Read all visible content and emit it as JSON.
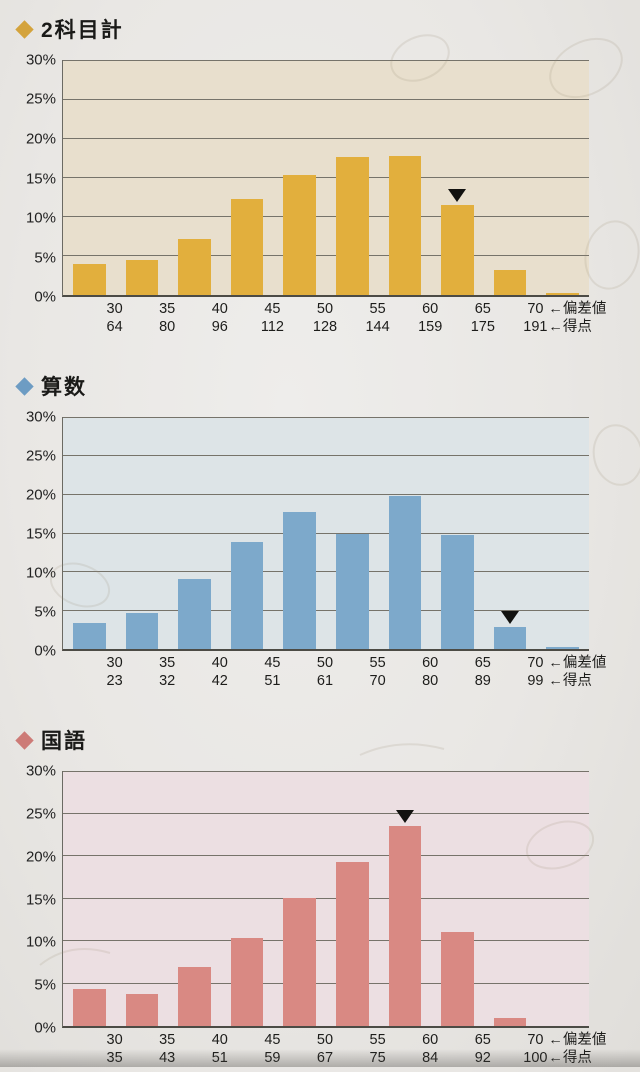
{
  "page": {
    "background_color": "#e9e7e4",
    "marker_glyph": "black-down-triangle"
  },
  "chart_data": [
    {
      "type": "bar",
      "title": "2科目計",
      "ylim": [
        0,
        30
      ],
      "ytick": 5,
      "grid": "horizontal",
      "y_labels": [
        "30%",
        "25%",
        "20%",
        "15%",
        "10%",
        "5%",
        "0%"
      ],
      "bin_ranges": [
        "<30",
        "30-35",
        "35-40",
        "40-45",
        "45-50",
        "50-55",
        "55-60",
        "60-65",
        "65-70",
        "70+"
      ],
      "values_percent": [
        4.0,
        4.5,
        7.2,
        12.2,
        15.3,
        17.6,
        17.7,
        11.5,
        3.2,
        0.3
      ],
      "marker_bin_index": 7,
      "x_boundary_labels": {
        "deviation": [
          "30",
          "35",
          "40",
          "45",
          "50",
          "55",
          "60",
          "65",
          "70"
        ],
        "score": [
          "64",
          "80",
          "96",
          "112",
          "128",
          "144",
          "159",
          "175",
          "191"
        ]
      },
      "x_axis_caption_deviation": "←偏差値",
      "x_axis_caption_score": "←得点",
      "colors": {
        "accent": "#d4a33c",
        "bar": "#e2af3d",
        "plot_bg": "#e8dfcd"
      }
    },
    {
      "type": "bar",
      "title": "算数",
      "ylim": [
        0,
        30
      ],
      "ytick": 5,
      "grid": "horizontal",
      "y_labels": [
        "30%",
        "25%",
        "20%",
        "15%",
        "10%",
        "5%",
        "0%"
      ],
      "bin_ranges": [
        "<30",
        "30-35",
        "35-40",
        "40-45",
        "45-50",
        "50-55",
        "55-60",
        "60-65",
        "65-70",
        "70+"
      ],
      "values_percent": [
        3.4,
        4.7,
        9.0,
        13.9,
        17.7,
        14.9,
        19.8,
        14.7,
        2.9,
        0.3
      ],
      "marker_bin_index": 8,
      "x_boundary_labels": {
        "deviation": [
          "30",
          "35",
          "40",
          "45",
          "50",
          "55",
          "60",
          "65",
          "70"
        ],
        "score": [
          "23",
          "32",
          "42",
          "51",
          "61",
          "70",
          "80",
          "89",
          "99"
        ]
      },
      "x_axis_caption_deviation": "←偏差値",
      "x_axis_caption_score": "←得点",
      "colors": {
        "accent": "#6d9cc3",
        "bar": "#7da9cb",
        "plot_bg": "#dde4e7"
      }
    },
    {
      "type": "bar",
      "title": "国語",
      "ylim": [
        0,
        30
      ],
      "ytick": 5,
      "grid": "horizontal",
      "y_labels": [
        "30%",
        "25%",
        "20%",
        "15%",
        "10%",
        "5%",
        "0%"
      ],
      "bin_ranges": [
        "<30",
        "30-35",
        "35-40",
        "40-45",
        "45-50",
        "50-55",
        "55-60",
        "60-65",
        "65-70",
        "70+"
      ],
      "values_percent": [
        4.4,
        3.8,
        7.0,
        10.4,
        15.1,
        19.3,
        23.5,
        11.1,
        1.0,
        0
      ],
      "marker_bin_index": 6,
      "x_boundary_labels": {
        "deviation": [
          "30",
          "35",
          "40",
          "45",
          "50",
          "55",
          "60",
          "65",
          "70"
        ],
        "score": [
          "35",
          "43",
          "51",
          "59",
          "67",
          "75",
          "84",
          "92",
          "100"
        ]
      },
      "x_axis_caption_deviation": "←偏差値",
      "x_axis_caption_score": "←得点",
      "colors": {
        "accent": "#cd7b77",
        "bar": "#d98983",
        "plot_bg": "#ecdfe2"
      }
    }
  ]
}
